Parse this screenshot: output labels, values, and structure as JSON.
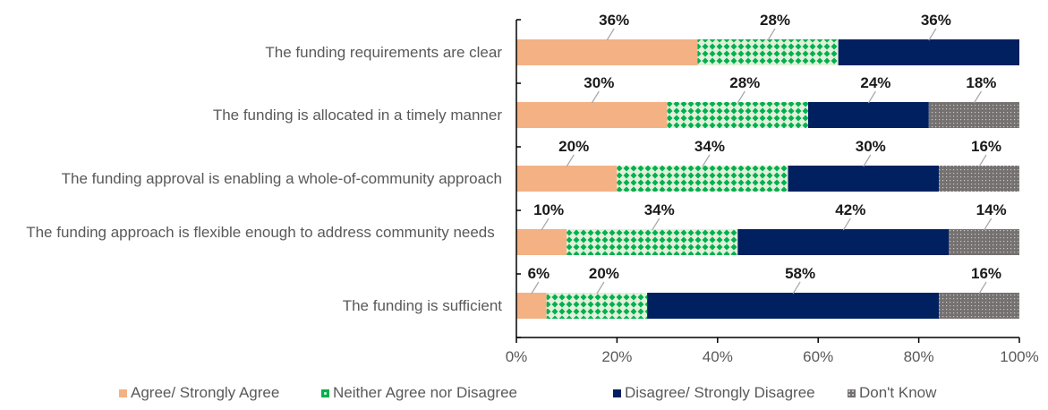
{
  "chart_data": {
    "type": "bar",
    "orientation": "horizontal",
    "stacked": true,
    "categories": [
      "The funding requirements are clear",
      "The funding is allocated in a timely manner",
      "The funding approval is enabling a whole-of-community approach",
      "The funding approach is flexible enough to address community needs",
      "The funding is sufficient"
    ],
    "series": [
      {
        "name": "Agree/ Strongly Agree",
        "color": "#F4B183",
        "pattern": "solid",
        "values": [
          36,
          30,
          20,
          10,
          6
        ],
        "labels": [
          "36%",
          "30%",
          "20%",
          "10%",
          "6%"
        ]
      },
      {
        "name": "Neither Agree nor Disagree",
        "color": "#00B050",
        "pattern": "diamonds",
        "values": [
          28,
          28,
          34,
          34,
          20
        ],
        "labels": [
          "28%",
          "28%",
          "34%",
          "34%",
          "20%"
        ]
      },
      {
        "name": "Disagree/ Strongly Disagree",
        "color": "#002060",
        "pattern": "solid",
        "values": [
          36,
          24,
          30,
          42,
          58
        ],
        "labels": [
          "36%",
          "24%",
          "30%",
          "42%",
          "58%"
        ]
      },
      {
        "name": "Don't Know",
        "color": "#767171",
        "pattern": "dots",
        "values": [
          0,
          18,
          16,
          14,
          16
        ],
        "labels": [
          "",
          "18%",
          "16%",
          "14%",
          "16%"
        ]
      }
    ],
    "xlim": [
      0,
      100
    ],
    "xticks": [
      "0%",
      "20%",
      "40%",
      "60%",
      "80%",
      "100%"
    ],
    "title": "",
    "xlabel": "",
    "ylabel": "",
    "grid": false,
    "legend_position": "bottom"
  }
}
